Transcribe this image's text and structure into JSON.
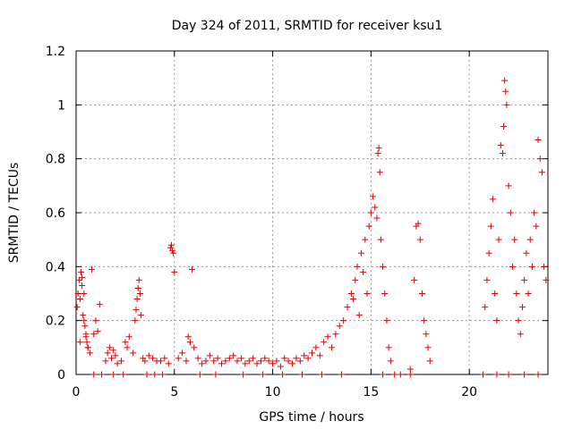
{
  "chart_data": {
    "type": "scatter",
    "title": "Day 324 of 2011, SRMTID for receiver ksu1",
    "xlabel": "GPS time / hours",
    "ylabel": "SRMTID / TECUs",
    "xlim": [
      0,
      24
    ],
    "ylim": [
      0,
      1.2
    ],
    "x_ticks": [
      0,
      5,
      10,
      15,
      20
    ],
    "x_tick_labels": [
      "0",
      "5",
      "10",
      "15",
      "20"
    ],
    "y_ticks": [
      0,
      0.2,
      0.4,
      0.6,
      0.8,
      1.0,
      1.2
    ],
    "y_tick_labels": [
      "0",
      "0.2",
      "0.4",
      "0.6",
      "0.8",
      "1",
      "1.2"
    ],
    "grid": true,
    "marker": "+",
    "color": "#e00000",
    "series": [
      {
        "name": "SRMTID",
        "x": [
          0.05,
          0.1,
          0.15,
          0.2,
          0.25,
          0.3,
          0.35,
          0.4,
          0.45,
          0.5,
          0.55,
          0.6,
          0.7,
          0.8,
          0.9,
          1.0,
          1.1,
          1.2,
          0.2,
          0.3,
          0.4,
          0.5,
          0.6,
          1.5,
          1.6,
          1.7,
          1.8,
          1.9,
          2.0,
          2.1,
          2.3,
          2.5,
          2.6,
          2.7,
          2.9,
          3.0,
          3.05,
          3.1,
          3.15,
          3.2,
          3.25,
          3.3,
          3.4,
          3.5,
          3.7,
          3.9,
          4.1,
          4.3,
          4.5,
          4.7,
          4.8,
          4.85,
          4.9,
          4.95,
          5.0,
          5.2,
          5.4,
          5.6,
          5.7,
          5.8,
          5.9,
          6.0,
          6.2,
          6.4,
          6.6,
          6.8,
          7.0,
          7.2,
          7.4,
          7.6,
          7.8,
          8.0,
          8.2,
          8.4,
          8.6,
          8.8,
          9.0,
          9.2,
          9.4,
          9.6,
          9.8,
          10.0,
          10.2,
          10.4,
          10.6,
          10.8,
          11.0,
          11.2,
          11.4,
          11.6,
          11.8,
          12.0,
          12.2,
          12.4,
          12.6,
          12.8,
          13.0,
          13.2,
          13.4,
          13.6,
          13.8,
          14.0,
          14.1,
          14.2,
          14.3,
          14.4,
          14.5,
          14.6,
          14.7,
          14.8,
          14.9,
          15.0,
          15.1,
          15.2,
          15.3,
          15.35,
          15.4,
          15.45,
          15.5,
          15.6,
          15.7,
          15.8,
          15.9,
          16.0,
          16.5,
          17.0,
          17.2,
          17.3,
          17.4,
          17.5,
          17.6,
          17.7,
          17.8,
          17.9,
          18.0,
          20.8,
          20.9,
          21.0,
          21.1,
          21.2,
          21.3,
          21.4,
          21.5,
          21.6,
          21.7,
          21.75,
          21.8,
          21.85,
          21.9,
          22.0,
          22.1,
          22.2,
          22.3,
          22.4,
          22.5,
          22.6,
          22.7,
          22.8,
          22.9,
          23.0,
          23.1,
          23.2,
          23.3,
          23.4,
          23.5,
          23.6,
          23.7,
          23.8,
          23.9,
          0.9,
          1.3,
          1.9,
          2.4,
          3.6,
          4.0,
          4.4,
          6.3,
          7.1,
          8.5,
          9.5,
          10.5,
          11.5,
          12.5,
          13.5,
          15.6,
          16.2,
          17.0,
          20.7,
          21.4,
          22.0,
          22.8,
          23.5
        ],
        "y": [
          0.25,
          0.3,
          0.35,
          0.28,
          0.38,
          0.33,
          0.22,
          0.3,
          0.18,
          0.15,
          0.12,
          0.1,
          0.08,
          0.39,
          0.15,
          0.2,
          0.16,
          0.26,
          0.12,
          0.36,
          0.2,
          0.14,
          0.1,
          0.05,
          0.08,
          0.1,
          0.06,
          0.09,
          0.07,
          0.04,
          0.05,
          0.12,
          0.1,
          0.14,
          0.08,
          0.2,
          0.24,
          0.28,
          0.32,
          0.35,
          0.3,
          0.22,
          0.06,
          0.05,
          0.07,
          0.06,
          0.05,
          0.05,
          0.06,
          0.04,
          0.47,
          0.48,
          0.46,
          0.45,
          0.38,
          0.06,
          0.08,
          0.05,
          0.14,
          0.12,
          0.39,
          0.1,
          0.06,
          0.04,
          0.05,
          0.07,
          0.05,
          0.06,
          0.04,
          0.05,
          0.06,
          0.07,
          0.05,
          0.06,
          0.04,
          0.05,
          0.06,
          0.04,
          0.05,
          0.06,
          0.05,
          0.04,
          0.05,
          0.03,
          0.06,
          0.05,
          0.04,
          0.06,
          0.05,
          0.07,
          0.06,
          0.08,
          0.1,
          0.07,
          0.12,
          0.14,
          0.1,
          0.15,
          0.18,
          0.2,
          0.25,
          0.3,
          0.28,
          0.35,
          0.4,
          0.22,
          0.45,
          0.38,
          0.5,
          0.3,
          0.55,
          0.6,
          0.66,
          0.62,
          0.58,
          0.82,
          0.84,
          0.75,
          0.5,
          0.4,
          0.3,
          0.2,
          0.1,
          0.05,
          0.0,
          0.02,
          0.35,
          0.55,
          0.56,
          0.5,
          0.3,
          0.2,
          0.15,
          0.1,
          0.05,
          0.25,
          0.35,
          0.45,
          0.55,
          0.65,
          0.3,
          0.2,
          0.5,
          0.85,
          0.82,
          0.92,
          1.09,
          1.05,
          1.0,
          0.7,
          0.6,
          0.4,
          0.5,
          0.3,
          0.2,
          0.15,
          0.25,
          0.35,
          0.45,
          0.3,
          0.5,
          0.4,
          0.6,
          0.55,
          0.87,
          0.8,
          0.75,
          0.4,
          0.35,
          0.0,
          0.0,
          0.0,
          0.0,
          0.0,
          0.0,
          0.0,
          0.0,
          0.0,
          0.0,
          0.0,
          0.0,
          0.0,
          0.0,
          0.0,
          0.0,
          0.0,
          0.0,
          0.0,
          0.0,
          0.0,
          0.0,
          0.0
        ]
      }
    ]
  }
}
